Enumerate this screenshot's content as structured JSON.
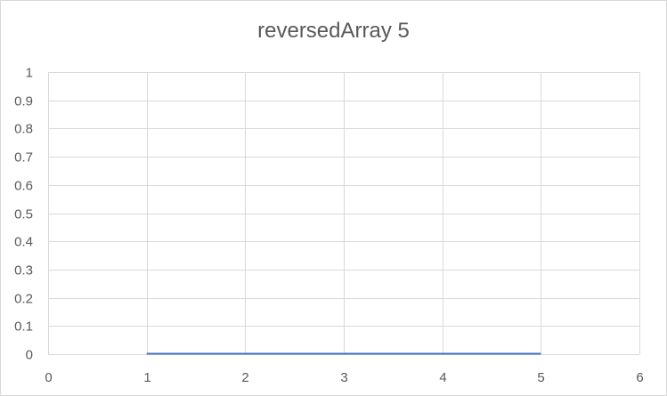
{
  "chart_data": {
    "type": "scatter",
    "title": "reversedArray 5",
    "xlabel": "",
    "ylabel": "",
    "xlim": [
      0,
      6
    ],
    "ylim": [
      0,
      1
    ],
    "x_ticks": [
      "0",
      "1",
      "2",
      "3",
      "4",
      "5",
      "6"
    ],
    "y_ticks": [
      "0",
      "0.1",
      "0.2",
      "0.3",
      "0.4",
      "0.5",
      "0.6",
      "0.7",
      "0.8",
      "0.9",
      "1"
    ],
    "grid": true,
    "legend": "none",
    "series": [
      {
        "color": "#4472c4",
        "x": [
          1,
          2,
          3,
          4,
          5
        ],
        "y": [
          0,
          0,
          0,
          0,
          0
        ]
      }
    ],
    "colors": {
      "grid": "#d9d9d9",
      "tick_text": "#595959",
      "title": "#595959"
    }
  }
}
